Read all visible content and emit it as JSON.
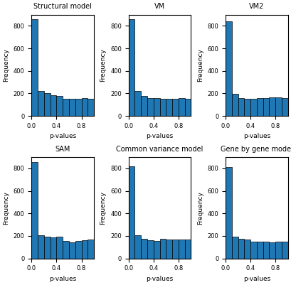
{
  "chart_data": [
    {
      "type": "histogram",
      "title": "Structural model",
      "xlabel": "p-values",
      "ylabel": "Frequency",
      "bins": [
        0.0,
        0.1,
        0.2,
        0.3,
        0.4,
        0.5,
        0.6,
        0.7,
        0.8,
        0.9,
        1.0
      ],
      "values": [
        860,
        220,
        200,
        185,
        175,
        155,
        155,
        155,
        160,
        155
      ],
      "xlim": [
        0.0,
        1.0
      ],
      "xticks": [
        0.0,
        0.4,
        0.8
      ],
      "ylim": [
        0,
        900
      ],
      "yticks": [
        0,
        200,
        400,
        600,
        800
      ]
    },
    {
      "type": "histogram",
      "title": "VM",
      "xlabel": "p-values",
      "ylabel": "Frequency",
      "bins": [
        0.0,
        0.1,
        0.2,
        0.3,
        0.4,
        0.5,
        0.6,
        0.7,
        0.8,
        0.9,
        1.0
      ],
      "values": [
        860,
        220,
        175,
        160,
        160,
        155,
        155,
        155,
        160,
        150
      ],
      "xlim": [
        0.0,
        1.0
      ],
      "xticks": [
        0.0,
        0.4,
        0.8
      ],
      "ylim": [
        0,
        900
      ],
      "yticks": [
        0,
        200,
        400,
        600,
        800
      ]
    },
    {
      "type": "histogram",
      "title": "VM2",
      "xlabel": "p-values",
      "ylabel": "Frequency",
      "bins": [
        0.0,
        0.1,
        0.2,
        0.3,
        0.4,
        0.5,
        0.6,
        0.7,
        0.8,
        0.9,
        1.0
      ],
      "values": [
        840,
        195,
        160,
        150,
        155,
        160,
        160,
        165,
        165,
        160
      ],
      "xlim": [
        0.0,
        1.0
      ],
      "xticks": [
        0.0,
        0.4,
        0.8
      ],
      "ylim": [
        0,
        900
      ],
      "yticks": [
        0,
        200,
        400,
        600,
        800
      ]
    },
    {
      "type": "histogram",
      "title": "SAM",
      "xlabel": "p-values",
      "ylabel": "Frequency",
      "bins": [
        0.0,
        0.1,
        0.2,
        0.3,
        0.4,
        0.5,
        0.6,
        0.7,
        0.8,
        0.9,
        1.0
      ],
      "values": [
        855,
        205,
        190,
        185,
        195,
        155,
        145,
        155,
        160,
        165
      ],
      "xlim": [
        0.0,
        1.0
      ],
      "xticks": [
        0.0,
        0.4,
        0.8
      ],
      "ylim": [
        0,
        900
      ],
      "yticks": [
        0,
        200,
        400,
        600,
        800
      ]
    },
    {
      "type": "histogram",
      "title": "Common variance model",
      "xlabel": "p-values",
      "ylabel": "Frequency",
      "bins": [
        0.0,
        0.1,
        0.2,
        0.3,
        0.4,
        0.5,
        0.6,
        0.7,
        0.8,
        0.9,
        1.0
      ],
      "values": [
        815,
        205,
        175,
        160,
        155,
        175,
        165,
        170,
        165,
        165
      ],
      "xlim": [
        0.0,
        1.0
      ],
      "xticks": [
        0.0,
        0.4,
        0.8
      ],
      "ylim": [
        0,
        900
      ],
      "yticks": [
        0,
        200,
        400,
        600,
        800
      ]
    },
    {
      "type": "histogram",
      "title": "Gene by gene model",
      "xlabel": "p-values",
      "ylabel": "Frequency",
      "bins": [
        0.0,
        0.1,
        0.2,
        0.3,
        0.4,
        0.5,
        0.6,
        0.7,
        0.8,
        0.9,
        1.0
      ],
      "values": [
        810,
        190,
        175,
        165,
        150,
        150,
        150,
        145,
        150,
        150
      ],
      "xlim": [
        0.0,
        1.0
      ],
      "xticks": [
        0.0,
        0.4,
        0.8
      ],
      "ylim": [
        0,
        900
      ],
      "yticks": [
        0,
        200,
        400,
        600,
        800
      ]
    }
  ]
}
